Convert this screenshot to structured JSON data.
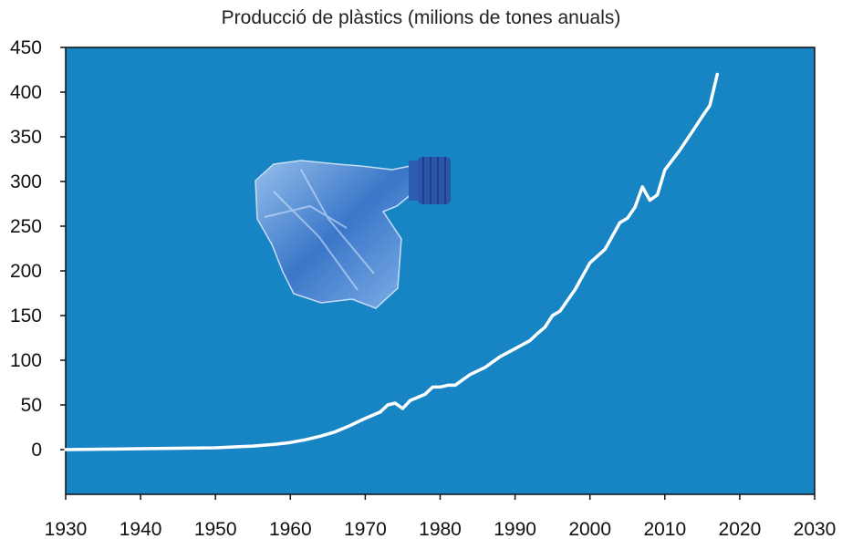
{
  "chart_data": {
    "type": "line",
    "title": "Producció de plàstics (milions de tones anuals)",
    "xlabel": "",
    "ylabel": "",
    "xlim": [
      1930,
      2030
    ],
    "ylim": [
      -50,
      450
    ],
    "x_ticks": [
      "1930",
      "1940",
      "1950",
      "1960",
      "1970",
      "1980",
      "1990",
      "2000",
      "2010",
      "2020",
      "2030"
    ],
    "y_ticks": [
      "0",
      "50",
      "100",
      "150",
      "200",
      "250",
      "300",
      "350",
      "400",
      "450"
    ],
    "grid": false,
    "legend": "none",
    "colors": {
      "plot_background": "#1785c4",
      "line": "#ffffff",
      "frame": "#111111"
    },
    "decoration": "crushed-plastic-bottle-image",
    "series": [
      {
        "x": [
          1930,
          1935,
          1940,
          1945,
          1950,
          1955,
          1958,
          1960,
          1962,
          1964,
          1966,
          1968,
          1970,
          1972,
          1973,
          1974,
          1975,
          1976,
          1978,
          1979,
          1980,
          1981,
          1982,
          1984,
          1986,
          1988,
          1990,
          1992,
          1993,
          1994,
          1995,
          1996,
          1998,
          2000,
          2002,
          2004,
          2005,
          2006,
          2007,
          2008,
          2009,
          2010,
          2012,
          2014,
          2015,
          2016,
          2017
        ],
        "y": [
          0,
          0.5,
          1,
          1.5,
          2,
          4,
          6,
          8,
          11,
          15,
          20,
          27,
          35,
          42,
          50,
          52,
          46,
          55,
          62,
          70,
          70,
          72,
          72,
          84,
          92,
          104,
          113,
          122,
          130,
          137,
          150,
          155,
          179,
          209,
          224,
          254,
          259,
          271,
          294,
          279,
          285,
          313,
          335,
          360,
          373,
          385,
          420
        ]
      }
    ]
  }
}
